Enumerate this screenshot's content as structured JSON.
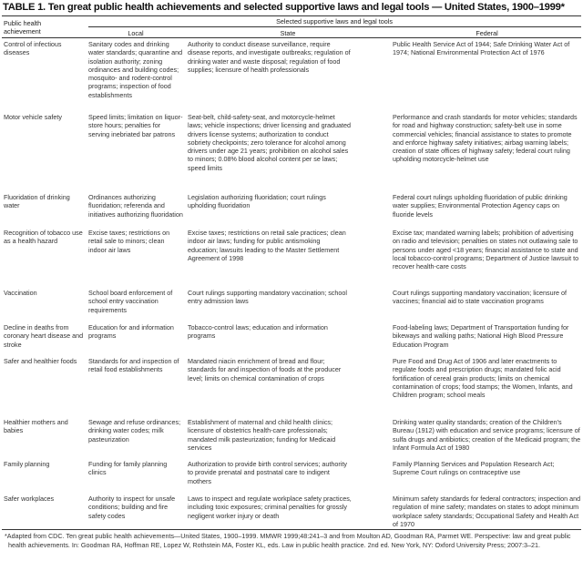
{
  "title": "TABLE 1. Ten great public health achievements and selected supportive laws and legal tools — United States, 1900–1999*",
  "header": {
    "achievement": "Public health achievement",
    "group": "Selected supportive laws and legal tools",
    "local": "Local",
    "state": "State",
    "federal": "Federal"
  },
  "rows": [
    {
      "achievement": "Control of infectious diseases",
      "local": "Sanitary codes and drinking water standards; quarantine and isolation authority; zoning ordinances and building codes; mosquito- and rodent-control programs; inspection of food establishments",
      "state": "Authority to conduct disease surveillance, require disease reports, and investigate outbreaks; regulation of drinking water and waste disposal; regulation of food supplies; licensure of health professionals",
      "federal": "Public Health Service Act of 1944; Safe Drinking Water Act of 1974; National Environmental Protection Act of 1976"
    },
    {
      "achievement": "Motor vehicle safety",
      "local": "Speed limits; limitation on liquor-store hours; penalties for serving inebriated bar patrons",
      "state": "Seat-belt, child-safety-seat, and motorcycle-helmet laws; vehicle inspections; driver licensing and graduated drivers license systems; authorization to conduct sobriety checkpoints; zero tolerance for alcohol among drivers under age 21 years; prohibition on alcohol sales to minors; 0.08% blood alcohol content per se laws; speed limits",
      "federal": "Performance and crash standards for motor vehicles; standards for road and highway construction; safety-belt use in some commercial vehicles; financial assistance to states to promote and enforce highway safety initiatives; airbag warning labels; creation of state offices of highway safety; federal court ruling upholding motorcycle-helmet use"
    },
    {
      "achievement": "Fluoridation of drinking water",
      "local": "Ordinances authorizing fluoridation; referenda and initiatives authorizing fluoridation",
      "state": "Legislation authorizing fluoridation; court rulings upholding fluoridation",
      "federal": "Federal court rulings upholding fluoridation of public drinking water supplies; Environmental Protection Agency caps on fluoride levels"
    },
    {
      "achievement": "Recognition of tobacco use as a health hazard",
      "local": "Excise taxes; restrictions on retail sale to minors; clean indoor air laws",
      "state": "Excise taxes; restrictions on retail sale practices; clean indoor air laws; funding for public antismoking education; lawsuits leading to the Master Settlement Agreement of 1998",
      "federal": "Excise tax; mandated warning labels; prohibition of advertising on radio and television; penalties on states not outlawing sale to persons under aged <18 years; financial assistance to state and local tobacco-control programs; Department of Justice lawsuit to recover health-care costs"
    },
    {
      "achievement": "Vaccination",
      "local": "School board enforcement of school entry vaccination requirements",
      "state": "Court rulings supporting mandatory vaccination; school entry admission laws",
      "federal": "Court rulings supporting mandatory vaccination; licensure of vaccines; financial aid to state vaccination programs"
    },
    {
      "achievement": "Decline in deaths from coronary heart disease and stroke",
      "local": "Education for and information programs",
      "state": "Tobacco-control laws; education and information programs",
      "federal": "Food-labeling laws; Department of Transportation funding for bikeways and walking paths; National High Blood Pressure Education Program"
    },
    {
      "achievement": "Safer and healthier foods",
      "local": "Standards for and inspection of retail food establishments",
      "state": "Mandated niacin enrichment of bread and flour; standards for and inspection of foods at the producer level; limits on chemical contamination of crops",
      "federal": "Pure Food and Drug Act of 1906 and later enactments to regulate foods and prescription drugs; mandated folic acid fortification of cereal grain products; limits on chemical contamination of crops; food stamps; the Women, Infants, and Children program; school meals"
    },
    {
      "achievement": "Healthier mothers and babies",
      "local": "Sewage and refuse ordinances; drinking water codes; milk pasteurization",
      "state": "Establishment of maternal and child health clinics; licensure of obstetrics health-care professionals; mandated milk pasteurization; funding for Medicaid services",
      "federal": "Drinking water quality standards; creation of the Children's Bureau (1912) with education and service programs; licensure of sulfa drugs and antibiotics; creation of the Medicaid program; the Infant Formula Act of 1980"
    },
    {
      "achievement": "Family planning",
      "local": "Funding for family planning clinics",
      "state": "Authorization to provide birth control services; authority to provide prenatal and postnatal care to indigent mothers",
      "federal": "Family Planning Services and Population Research Act; Supreme Court rulings on contraceptive use"
    },
    {
      "achievement": "Safer workplaces",
      "local": "Authority to inspect for unsafe conditions; building and fire safety codes",
      "state": "Laws to inspect and regulate workplace safety practices, including toxic exposures; criminal penalties for grossly negligent worker injury or death",
      "federal": "Minimum safety standards for federal contractors; inspection and regulation of mine safety; mandates on states to adopt minimum workplace safety standards; Occupational Safety and Health Act of 1970"
    }
  ],
  "footnote": "*Adapted from CDC. Ten great public health achievements—United States, 1900–1999. MMWR 1999;48:241–3 and from Moulton AD, Goodman RA, Parmet WE. Perspective: law and great public health achievements. In: Goodman RA, Hoffman RE, Lopez W, Rothstein MA, Foster KL, eds. Law in public health practice. 2nd ed. New York, NY: Oxford University Press; 2007:3–21."
}
